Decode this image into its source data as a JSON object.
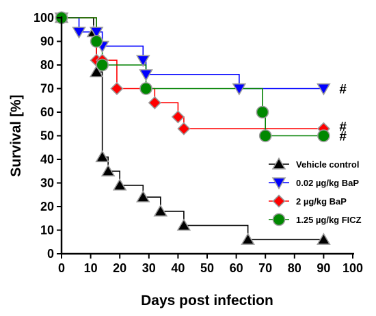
{
  "chart_data": {
    "type": "line",
    "step": true,
    "title": "",
    "xlabel": "Days post infection",
    "ylabel": "Survival [%]",
    "xlim": [
      0,
      100
    ],
    "ylim": [
      0,
      100
    ],
    "xticks": [
      0,
      10,
      20,
      30,
      40,
      50,
      60,
      70,
      80,
      90,
      100
    ],
    "yticks": [
      0,
      10,
      20,
      30,
      40,
      50,
      60,
      70,
      80,
      90,
      100
    ],
    "grid": false,
    "legend_position": "bottom-right",
    "series": [
      {
        "name": "Vehicle control",
        "color": "#000000",
        "marker_color": "#000000",
        "marker": "triangle-up",
        "points": [
          [
            0,
            100
          ],
          [
            11,
            94
          ],
          [
            12,
            77
          ],
          [
            14,
            41
          ],
          [
            16,
            35
          ],
          [
            20,
            29
          ],
          [
            28,
            24
          ],
          [
            34,
            18
          ],
          [
            42,
            12
          ],
          [
            64,
            6
          ],
          [
            90,
            6
          ]
        ]
      },
      {
        "name": "0.02 µg/kg BaP",
        "color": "#0000ff",
        "marker_color": "#0000ff",
        "marker": "triangle-down",
        "points": [
          [
            0,
            100
          ],
          [
            6,
            94
          ],
          [
            12,
            94
          ],
          [
            14,
            88
          ],
          [
            28,
            82
          ],
          [
            29,
            76
          ],
          [
            61,
            70
          ],
          [
            90,
            70
          ]
        ]
      },
      {
        "name": "2 µg/kg BaP",
        "color": "#ff0000",
        "marker_color": "#ff0000",
        "marker": "diamond",
        "points": [
          [
            0,
            100
          ],
          [
            12,
            82
          ],
          [
            14,
            82
          ],
          [
            19,
            70
          ],
          [
            29,
            70
          ],
          [
            32,
            64
          ],
          [
            40,
            58
          ],
          [
            42,
            53
          ],
          [
            90,
            53
          ]
        ]
      },
      {
        "name": "1.25 µg/kg FICZ",
        "color": "#008000",
        "marker_color": "#008800",
        "marker": "circle",
        "points": [
          [
            0,
            100
          ],
          [
            12,
            90
          ],
          [
            14,
            80
          ],
          [
            29,
            70
          ],
          [
            69,
            60
          ],
          [
            70,
            50
          ],
          [
            90,
            50
          ]
        ]
      }
    ],
    "annotations": [
      {
        "text": "#",
        "x": 90,
        "y": 70
      },
      {
        "text": "#",
        "x": 90,
        "y": 54
      },
      {
        "text": "#",
        "x": 90,
        "y": 50
      }
    ]
  }
}
